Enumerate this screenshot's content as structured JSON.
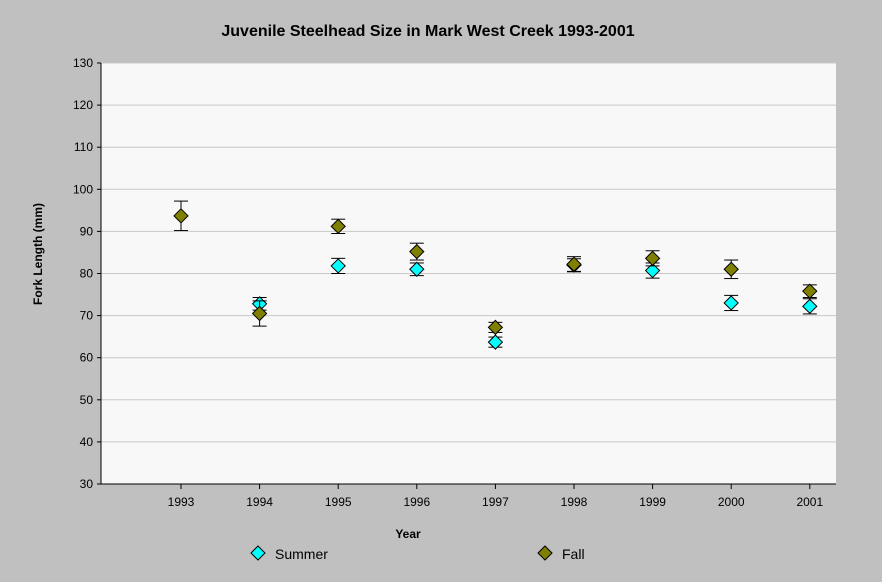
{
  "chart_data": {
    "type": "scatter",
    "title": "Juvenile Steelhead Size in Mark West Creek 1993-2001",
    "xlabel": "Year",
    "ylabel": "Fork Length (mm)",
    "ylim": [
      30,
      130
    ],
    "yticks": [
      30,
      40,
      50,
      60,
      70,
      80,
      90,
      100,
      110,
      120,
      130
    ],
    "categories": [
      "1993",
      "1994",
      "1995",
      "1996",
      "1997",
      "1998",
      "1999",
      "2000",
      "2001"
    ],
    "grid": true,
    "error_bars": true,
    "legend_position": "bottom",
    "colors": {
      "background": "#c0c0c0",
      "plot_background": "#f8f8f8",
      "grid": "#c8c8c8",
      "summer": "#00ffff",
      "fall": "#808000"
    },
    "series": [
      {
        "name": "Summer",
        "color": "#00ffff",
        "values": [
          null,
          72.8,
          81.8,
          81.0,
          63.7,
          82.0,
          80.7,
          73.0,
          72.2
        ],
        "error": [
          null,
          1.5,
          1.8,
          1.5,
          1.2,
          1.5,
          1.8,
          1.8,
          1.8
        ]
      },
      {
        "name": "Fall",
        "color": "#808000",
        "values": [
          93.7,
          70.5,
          91.2,
          85.2,
          67.2,
          82.2,
          83.6,
          81.0,
          75.8
        ],
        "error": [
          3.5,
          3.0,
          1.7,
          2.0,
          1.2,
          1.8,
          1.8,
          2.2,
          1.5
        ]
      }
    ]
  }
}
